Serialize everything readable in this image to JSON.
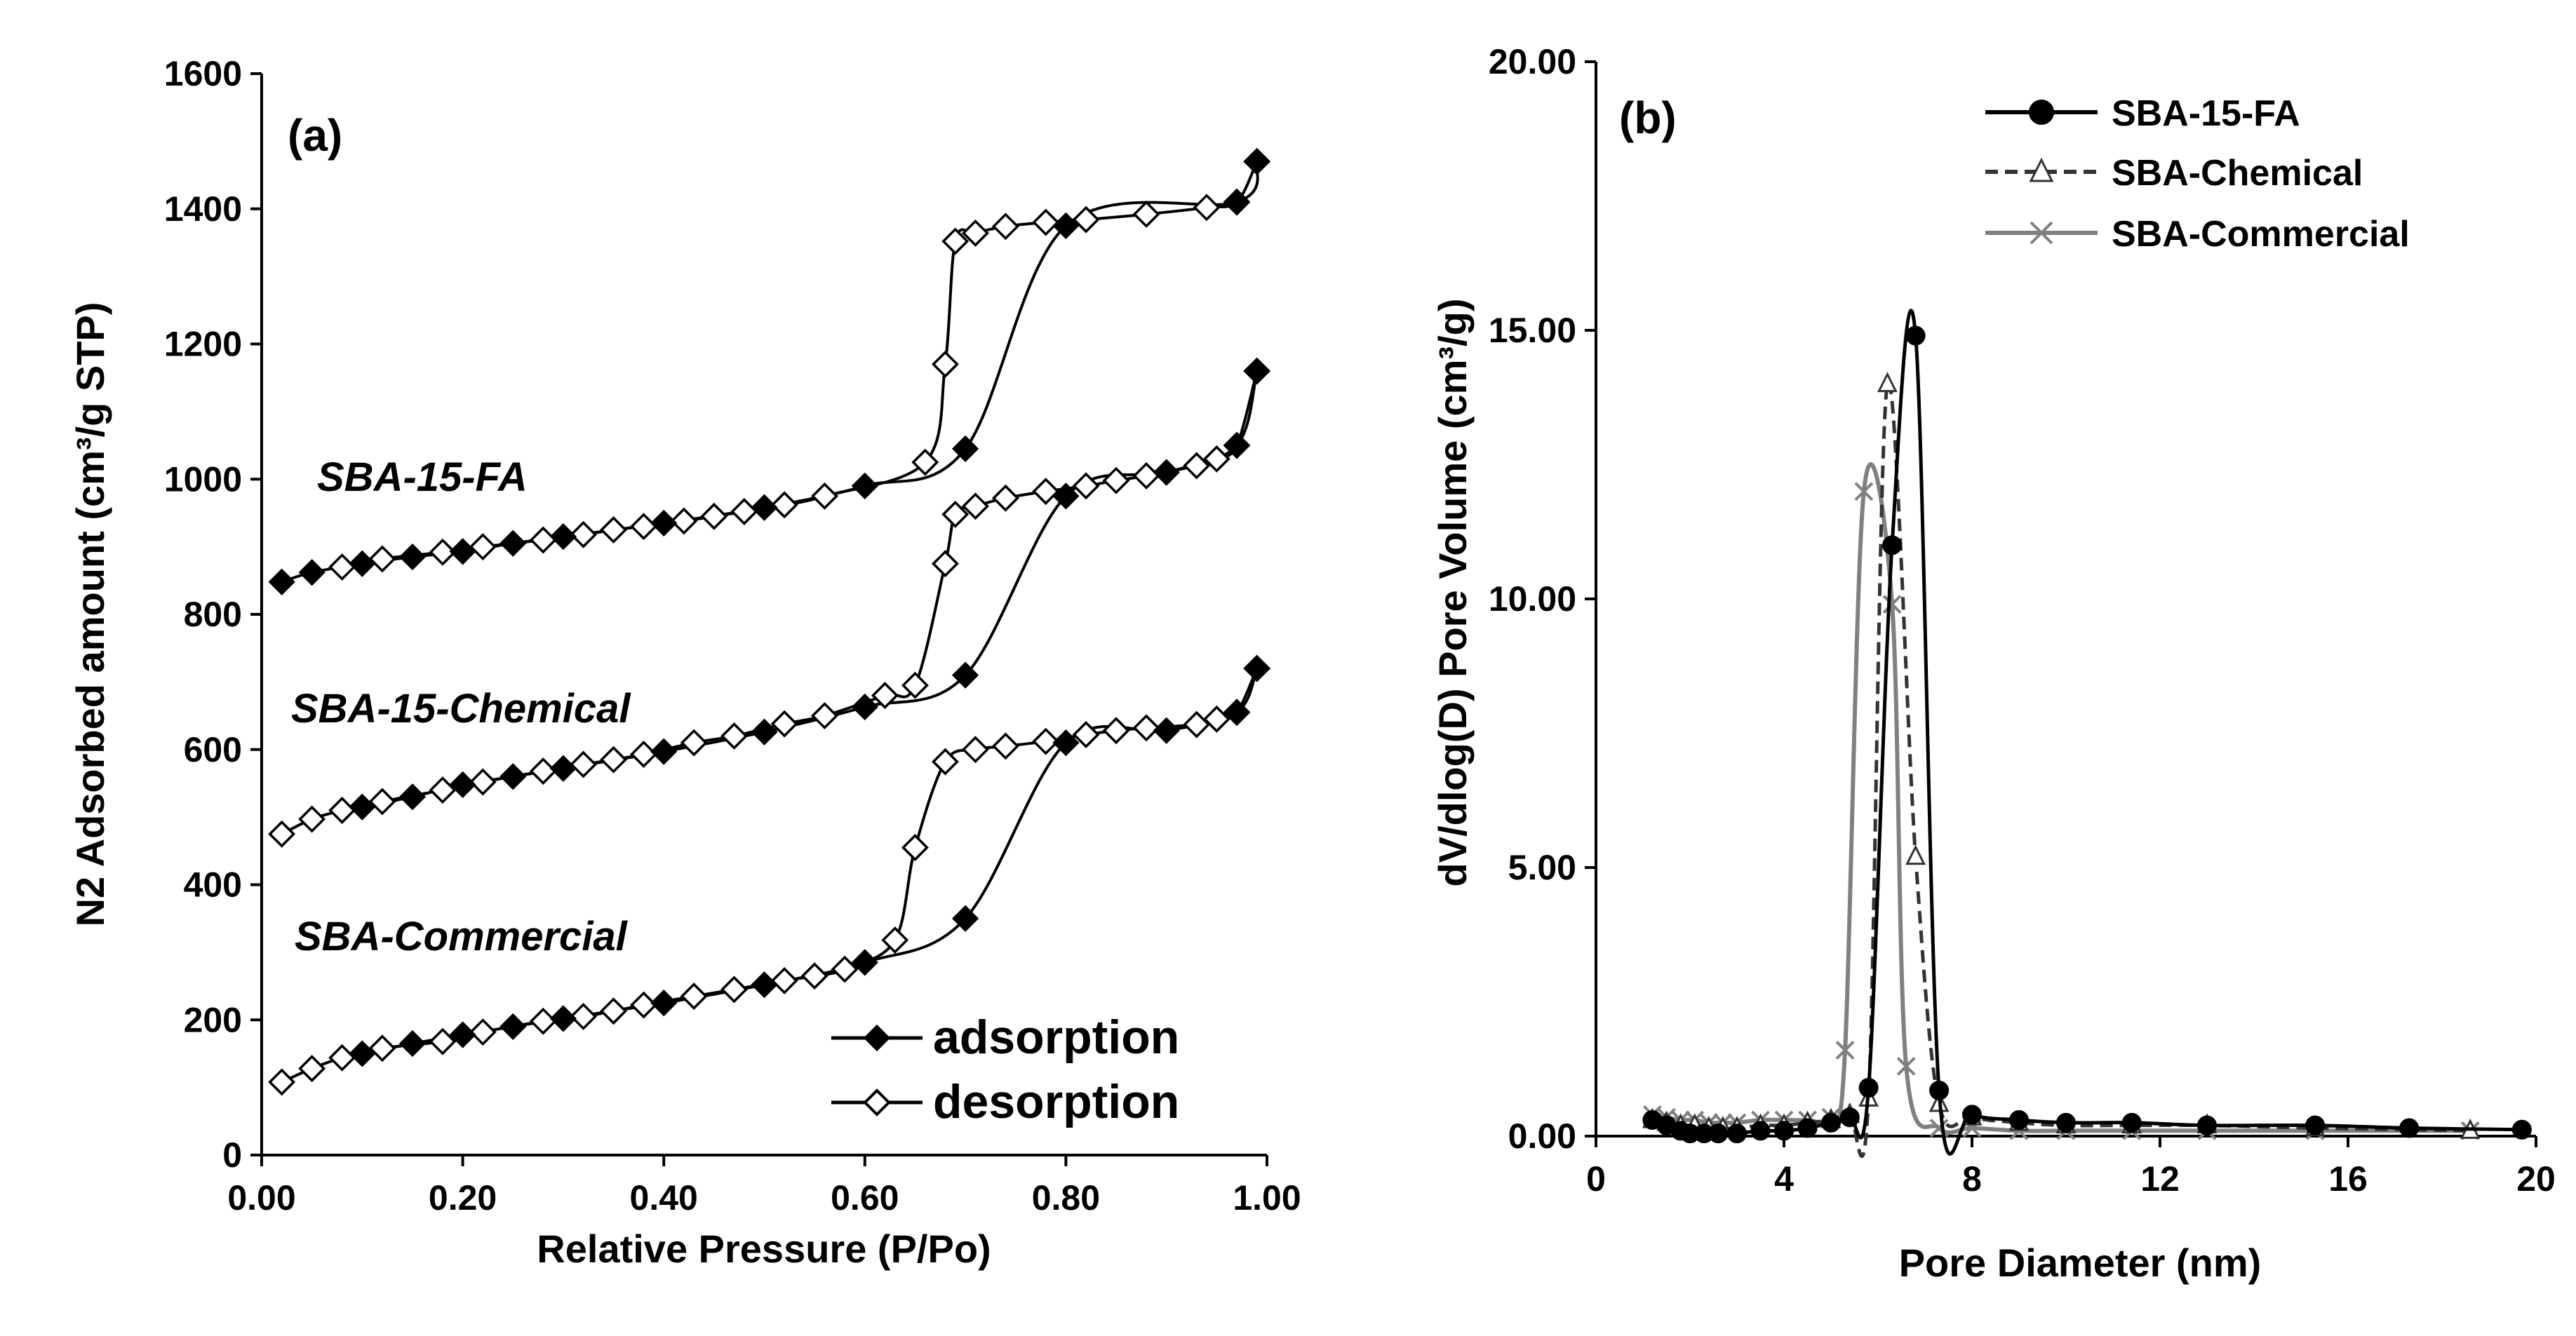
{
  "chart_data": [
    {
      "id": "a",
      "type": "line",
      "panel_label": "(a)",
      "xlabel": "Relative Pressure (P/Po)",
      "ylabel": "N2 Adsorbed amount  (cm³/g STP)",
      "xlim": [
        0,
        1
      ],
      "ylim": [
        0,
        1600
      ],
      "xticks": [
        "0.00",
        "0.20",
        "0.40",
        "0.60",
        "0.80",
        "1.00"
      ],
      "yticks": [
        "0",
        "200",
        "400",
        "600",
        "800",
        "1000",
        "1200",
        "1400",
        "1600"
      ],
      "legend": [
        "adsorption",
        "desorption"
      ],
      "samples": [
        {
          "label": "SBA-15-FA",
          "adsorption": [
            [
              0.02,
              848
            ],
            [
              0.05,
              862
            ],
            [
              0.1,
              875
            ],
            [
              0.15,
              885
            ],
            [
              0.2,
              893
            ],
            [
              0.25,
              905
            ],
            [
              0.3,
              915
            ],
            [
              0.4,
              935
            ],
            [
              0.5,
              958
            ],
            [
              0.6,
              990
            ],
            [
              0.7,
              1045
            ],
            [
              0.8,
              1375
            ],
            [
              0.97,
              1410
            ],
            [
              0.99,
              1470
            ]
          ],
          "desorption": [
            [
              0.99,
              1470
            ],
            [
              0.97,
              1410
            ],
            [
              0.94,
              1402
            ],
            [
              0.88,
              1392
            ],
            [
              0.82,
              1384
            ],
            [
              0.78,
              1380
            ],
            [
              0.74,
              1374
            ],
            [
              0.71,
              1364
            ],
            [
              0.69,
              1352
            ],
            [
              0.68,
              1170
            ],
            [
              0.66,
              1025
            ],
            [
              0.56,
              975
            ],
            [
              0.52,
              962
            ],
            [
              0.48,
              952
            ],
            [
              0.45,
              945
            ],
            [
              0.42,
              938
            ],
            [
              0.38,
              930
            ],
            [
              0.35,
              925
            ],
            [
              0.32,
              918
            ],
            [
              0.28,
              910
            ],
            [
              0.22,
              900
            ],
            [
              0.18,
              892
            ],
            [
              0.12,
              882
            ],
            [
              0.08,
              870
            ]
          ]
        },
        {
          "label": "SBA-15-Chemical",
          "adsorption": [
            [
              0.1,
              515
            ],
            [
              0.15,
              530
            ],
            [
              0.2,
              548
            ],
            [
              0.25,
              560
            ],
            [
              0.3,
              572
            ],
            [
              0.4,
              597
            ],
            [
              0.5,
              626
            ],
            [
              0.6,
              663
            ],
            [
              0.7,
              710
            ],
            [
              0.8,
              975
            ],
            [
              0.9,
              1010
            ],
            [
              0.97,
              1050
            ],
            [
              0.99,
              1160
            ]
          ],
          "desorption": [
            [
              0.99,
              1160
            ],
            [
              0.97,
              1050
            ],
            [
              0.95,
              1030
            ],
            [
              0.93,
              1020
            ],
            [
              0.88,
              1005
            ],
            [
              0.85,
              998
            ],
            [
              0.82,
              990
            ],
            [
              0.78,
              982
            ],
            [
              0.74,
              972
            ],
            [
              0.71,
              960
            ],
            [
              0.69,
              948
            ],
            [
              0.68,
              875
            ],
            [
              0.65,
              695
            ],
            [
              0.62,
              680
            ],
            [
              0.56,
              650
            ],
            [
              0.52,
              638
            ],
            [
              0.47,
              620
            ],
            [
              0.43,
              610
            ],
            [
              0.38,
              593
            ],
            [
              0.35,
              585
            ],
            [
              0.32,
              578
            ],
            [
              0.28,
              568
            ],
            [
              0.22,
              552
            ],
            [
              0.18,
              540
            ],
            [
              0.12,
              523
            ],
            [
              0.08,
              510
            ],
            [
              0.05,
              497
            ],
            [
              0.02,
              475
            ]
          ]
        },
        {
          "label": "SBA-Commercial",
          "adsorption": [
            [
              0.1,
              150
            ],
            [
              0.15,
              165
            ],
            [
              0.2,
              178
            ],
            [
              0.25,
              190
            ],
            [
              0.3,
              202
            ],
            [
              0.4,
              225
            ],
            [
              0.5,
              252
            ],
            [
              0.6,
              285
            ],
            [
              0.7,
              350
            ],
            [
              0.8,
              610
            ],
            [
              0.9,
              628
            ],
            [
              0.97,
              655
            ],
            [
              0.99,
              720
            ]
          ],
          "desorption": [
            [
              0.99,
              720
            ],
            [
              0.97,
              655
            ],
            [
              0.95,
              645
            ],
            [
              0.93,
              637
            ],
            [
              0.88,
              632
            ],
            [
              0.85,
              628
            ],
            [
              0.82,
              622
            ],
            [
              0.78,
              612
            ],
            [
              0.74,
              605
            ],
            [
              0.71,
              600
            ],
            [
              0.68,
              582
            ],
            [
              0.65,
              455
            ],
            [
              0.63,
              318
            ],
            [
              0.58,
              275
            ],
            [
              0.55,
              265
            ],
            [
              0.52,
              258
            ],
            [
              0.47,
              245
            ],
            [
              0.43,
              235
            ],
            [
              0.38,
              222
            ],
            [
              0.35,
              213
            ],
            [
              0.32,
              205
            ],
            [
              0.28,
              198
            ],
            [
              0.22,
              182
            ],
            [
              0.18,
              168
            ],
            [
              0.12,
              158
            ],
            [
              0.08,
              144
            ],
            [
              0.05,
              128
            ],
            [
              0.02,
              108
            ]
          ]
        }
      ]
    },
    {
      "id": "b",
      "type": "line",
      "panel_label": "(b)",
      "xlabel": "Pore Diameter (nm)",
      "ylabel": "dV/dlog(D) Pore Volume (cm³/g)",
      "xlim": [
        0,
        20
      ],
      "ylim": [
        0,
        20
      ],
      "xticks": [
        "0",
        "4",
        "8",
        "12",
        "16",
        "20"
      ],
      "yticks": [
        "0.00",
        "5.00",
        "10.00",
        "15.00",
        "20.00"
      ],
      "series": [
        {
          "name": "SBA-15-FA",
          "color": "#000000",
          "dash": "solid",
          "marker": "circle",
          "points": [
            [
              1.2,
              0.3
            ],
            [
              1.5,
              0.2
            ],
            [
              1.8,
              0.1
            ],
            [
              2.0,
              0.05
            ],
            [
              2.3,
              0.05
            ],
            [
              2.6,
              0.05
            ],
            [
              3.0,
              0.05
            ],
            [
              3.5,
              0.1
            ],
            [
              4.0,
              0.1
            ],
            [
              4.5,
              0.15
            ],
            [
              5.0,
              0.25
            ],
            [
              5.4,
              0.35
            ],
            [
              5.8,
              0.9
            ],
            [
              6.3,
              11.0
            ],
            [
              6.8,
              14.9
            ],
            [
              7.3,
              0.85
            ],
            [
              8.0,
              0.4
            ],
            [
              9.0,
              0.3
            ],
            [
              10.0,
              0.25
            ],
            [
              11.4,
              0.25
            ],
            [
              13.0,
              0.2
            ],
            [
              15.3,
              0.2
            ],
            [
              17.3,
              0.15
            ],
            [
              19.7,
              0.12
            ]
          ]
        },
        {
          "name": "SBA-Chemical",
          "color": "#333333",
          "dash": "dashed",
          "marker": "triangle",
          "points": [
            [
              1.2,
              0.3
            ],
            [
              1.5,
              0.25
            ],
            [
              1.8,
              0.2
            ],
            [
              2.1,
              0.2
            ],
            [
              2.4,
              0.15
            ],
            [
              2.7,
              0.15
            ],
            [
              3.0,
              0.15
            ],
            [
              3.5,
              0.2
            ],
            [
              4.0,
              0.2
            ],
            [
              4.5,
              0.25
            ],
            [
              5.0,
              0.3
            ],
            [
              5.4,
              0.4
            ],
            [
              5.8,
              0.7
            ],
            [
              6.2,
              14.0
            ],
            [
              6.8,
              5.2
            ],
            [
              7.3,
              0.6
            ],
            [
              8.0,
              0.35
            ],
            [
              9.0,
              0.25
            ],
            [
              10.0,
              0.2
            ],
            [
              11.4,
              0.2
            ],
            [
              13.0,
              0.2
            ],
            [
              15.3,
              0.15
            ],
            [
              18.6,
              0.1
            ]
          ]
        },
        {
          "name": "SBA-Commercial",
          "color": "#808080",
          "dash": "solid",
          "marker": "x",
          "points": [
            [
              1.2,
              0.4
            ],
            [
              1.5,
              0.35
            ],
            [
              1.8,
              0.3
            ],
            [
              2.1,
              0.3
            ],
            [
              2.4,
              0.25
            ],
            [
              2.7,
              0.25
            ],
            [
              3.0,
              0.25
            ],
            [
              3.5,
              0.3
            ],
            [
              4.0,
              0.3
            ],
            [
              4.5,
              0.3
            ],
            [
              5.0,
              0.35
            ],
            [
              5.3,
              1.6
            ],
            [
              5.7,
              12.0
            ],
            [
              6.3,
              9.9
            ],
            [
              6.6,
              1.3
            ],
            [
              7.3,
              0.15
            ],
            [
              8.0,
              0.15
            ],
            [
              9.0,
              0.1
            ],
            [
              10.0,
              0.1
            ],
            [
              11.4,
              0.1
            ],
            [
              13.0,
              0.1
            ],
            [
              15.3,
              0.1
            ],
            [
              18.6,
              0.1
            ]
          ]
        }
      ]
    }
  ]
}
